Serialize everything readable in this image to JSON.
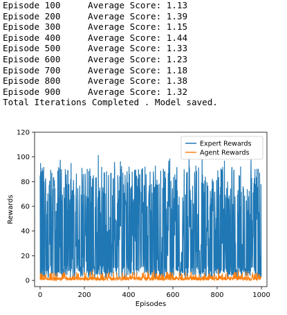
{
  "log": {
    "lines": [
      {
        "episode": "Episode 100",
        "score": "Average Score: 1.13"
      },
      {
        "episode": "Episode 200",
        "score": "Average Score: 1.39"
      },
      {
        "episode": "Episode 300",
        "score": "Average Score: 1.15"
      },
      {
        "episode": "Episode 400",
        "score": "Average Score: 1.44"
      },
      {
        "episode": "Episode 500",
        "score": "Average Score: 1.33"
      },
      {
        "episode": "Episode 600",
        "score": "Average Score: 1.23"
      },
      {
        "episode": "Episode 700",
        "score": "Average Score: 1.18"
      },
      {
        "episode": "Episode 800",
        "score": "Average Score: 1.38"
      },
      {
        "episode": "Episode 900",
        "score": "Average Score: 1.32"
      }
    ],
    "footer": "Total Iterations Completed . Model saved."
  },
  "chart_data": {
    "type": "line",
    "xlabel": "Episodes",
    "ylabel": "Rewards",
    "xlim": [
      -25,
      1025
    ],
    "ylim": [
      -5,
      120
    ],
    "xticks": [
      0,
      200,
      400,
      600,
      800,
      1000
    ],
    "yticks": [
      0,
      20,
      40,
      60,
      80,
      100,
      120
    ],
    "legend_position": "top-right",
    "grid": false,
    "series": [
      {
        "name": "Expert Rewards",
        "color": "#1f77b4",
        "n_points": 1000,
        "approx_range": [
          0,
          102
        ],
        "typical_peak": 85,
        "values_sample": [
          85,
          5,
          95,
          3,
          40,
          88,
          2,
          70,
          10,
          91,
          4,
          60,
          89,
          8,
          75,
          3,
          92,
          15,
          80,
          2
        ]
      },
      {
        "name": "Agent Rewards",
        "color": "#ff7f0e",
        "n_points": 1000,
        "approx_range": [
          0,
          9
        ],
        "typical_level": 1.3
      }
    ]
  }
}
